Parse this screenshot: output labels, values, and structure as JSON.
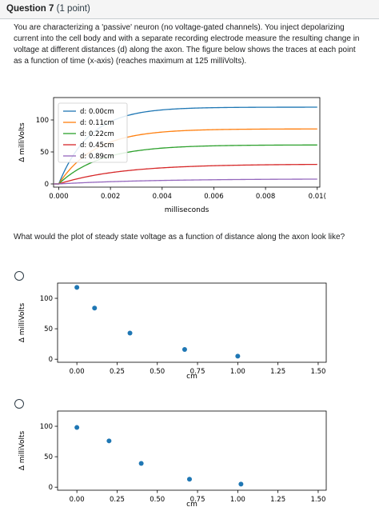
{
  "question": {
    "title": "Question 7",
    "points": "(1 point)",
    "text": "You are characterizing a 'passive' neuron (no voltage-gated channels). You inject depolarizing current into the cell body and with a separate recording electrode measure the resulting change in voltage at different distances (d) along the axon. The figure below shows the traces at each point as a function of time (x-axis) (reaches maximum at 125 milliVolts).",
    "prompt": "What would the plot of steady state voltage as a function of distance along the axon look like?"
  },
  "answers": [
    {
      "selected": false
    },
    {
      "selected": false
    }
  ],
  "chart_data": [
    {
      "type": "line",
      "xlabel": "milliseconds",
      "ylabel": "Δ milliVolts",
      "xlim": [
        -0.0002,
        0.0101
      ],
      "ylim": [
        -5,
        135
      ],
      "xticks": [
        0.0,
        0.002,
        0.004,
        0.006,
        0.008,
        0.01
      ],
      "xtick_labels": [
        "0.000",
        "0.002",
        "0.004",
        "0.006",
        "0.008",
        "0.01("
      ],
      "yticks": [
        0,
        50,
        100
      ],
      "ytick_labels": [
        "0",
        "50",
        "100"
      ],
      "grid": false,
      "legend": "top-left",
      "series": [
        {
          "name": "d: 0.00cm",
          "color": "#1f77b4",
          "steady": 120,
          "tau": 0.0012
        },
        {
          "name": "d: 0.11cm",
          "color": "#ff7f0e",
          "steady": 86,
          "tau": 0.0014
        },
        {
          "name": "d: 0.22cm",
          "color": "#2ca02c",
          "steady": 61,
          "tau": 0.0016
        },
        {
          "name": "d: 0.45cm",
          "color": "#d62728",
          "steady": 31,
          "tau": 0.0024
        },
        {
          "name": "d: 0.89cm",
          "color": "#9467bd",
          "steady": 8,
          "tau": 0.0035
        }
      ]
    },
    {
      "type": "scatter",
      "xlabel": "cm",
      "ylabel": "Δ milliVolts",
      "xlim": [
        -0.12,
        1.55
      ],
      "ylim": [
        -5,
        125
      ],
      "xticks": [
        0.0,
        0.25,
        0.5,
        0.75,
        1.0,
        1.25,
        1.5
      ],
      "xtick_labels": [
        "0.00",
        "0.25",
        "0.50",
        "0.75",
        "1.00",
        "1.25",
        "1.50"
      ],
      "yticks": [
        0,
        50,
        100
      ],
      "ytick_labels": [
        "0",
        "50",
        "100"
      ],
      "grid": false,
      "color": "#1f77b4",
      "x": [
        0.0,
        0.11,
        0.33,
        0.67,
        1.0
      ],
      "y": [
        118,
        84,
        43,
        16,
        5
      ]
    },
    {
      "type": "scatter",
      "xlabel": "cm",
      "ylabel": "Δ milliVolts",
      "xlim": [
        -0.12,
        1.55
      ],
      "ylim": [
        -5,
        125
      ],
      "xticks": [
        0.0,
        0.25,
        0.5,
        0.75,
        1.0,
        1.25,
        1.5
      ],
      "xtick_labels": [
        "0.00",
        "0.25",
        "0.50",
        "0.75",
        "1.00",
        "1.25",
        "1.50"
      ],
      "yticks": [
        0,
        50,
        100
      ],
      "ytick_labels": [
        "0",
        "50",
        "100"
      ],
      "grid": false,
      "color": "#1f77b4",
      "x": [
        0.0,
        0.2,
        0.4,
        0.7,
        1.02
      ],
      "y": [
        98,
        76,
        39,
        13,
        5
      ]
    }
  ]
}
